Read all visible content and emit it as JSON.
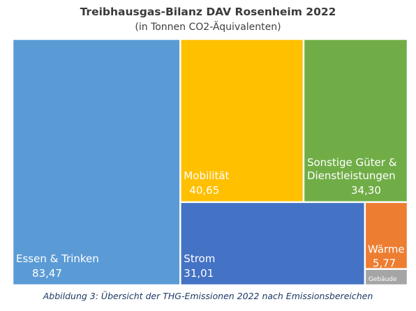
{
  "chart_data": {
    "type": "treemap",
    "title": "Treibhausgas-Bilanz DAV Rosenheim 2022",
    "subtitle": "(in Tonnen CO2-Äquivalenten)",
    "caption": "Abbildung 3: Übersicht der THG-Emissionen 2022 nach Emissionsbereichen",
    "series": [
      {
        "label_lines": [
          "Essen & Trinken"
        ],
        "value_label": "83,47",
        "value": 83.47,
        "color": "#5b9bd5"
      },
      {
        "label_lines": [
          "Mobilität"
        ],
        "value_label": "40,65",
        "value": 40.65,
        "color": "#ffc000"
      },
      {
        "label_lines": [
          "Sonstige Güter &",
          "Dienstleistungen"
        ],
        "value_label": "34,30",
        "value": 34.3,
        "color": "#70ad47"
      },
      {
        "label_lines": [
          "Strom"
        ],
        "value_label": "31,01",
        "value": 31.01,
        "color": "#4472c4"
      },
      {
        "label_lines": [
          "Wärme"
        ],
        "value_label": "5,77",
        "value": 5.77,
        "color": "#ed7d31"
      },
      {
        "label_lines": [
          "Gebäude"
        ],
        "value_label": "",
        "value": 1.4,
        "color": "#a5a5a5"
      }
    ]
  }
}
